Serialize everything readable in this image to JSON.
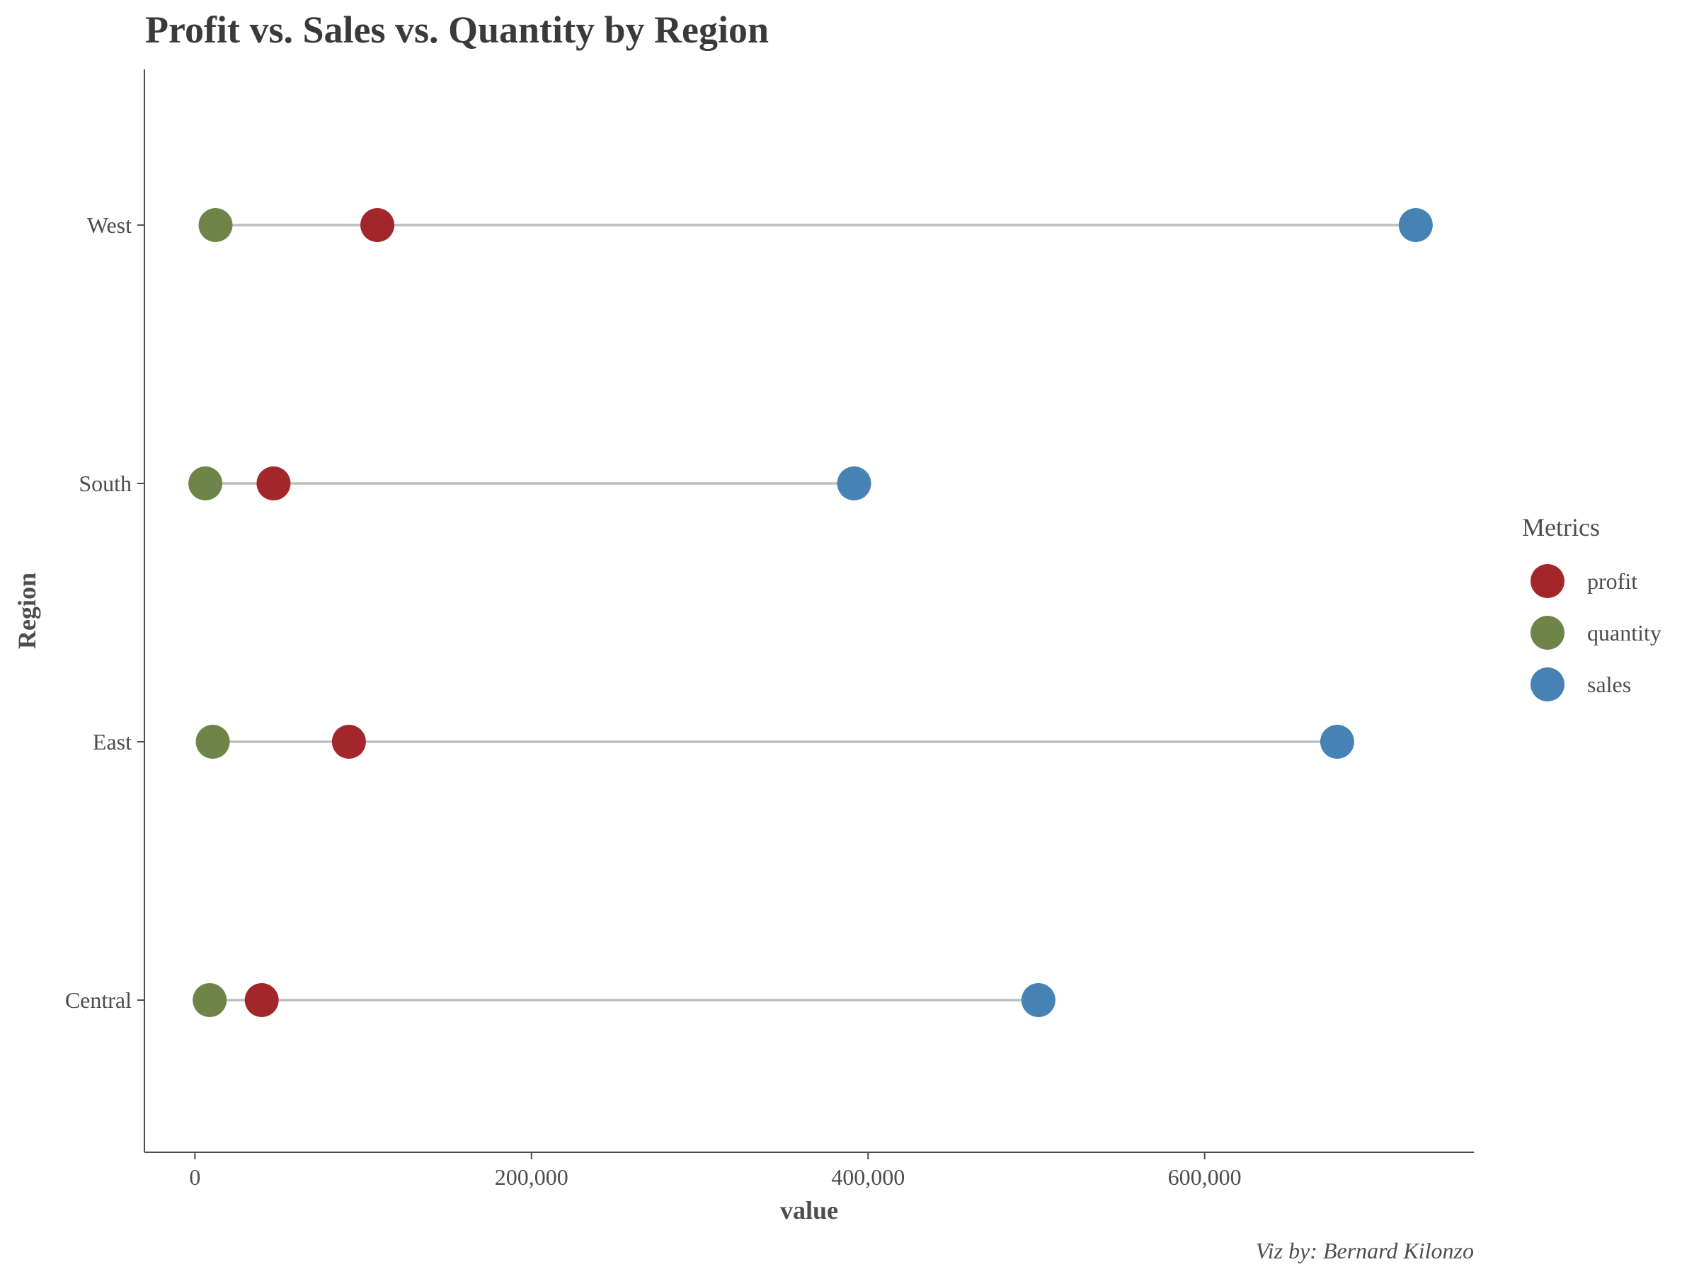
{
  "chart_data": {
    "type": "scatter",
    "subtype": "dumbbell",
    "title": "Profit vs. Sales vs. Quantity by Region",
    "xlabel": "value",
    "ylabel": "Region",
    "caption": "Viz by: Bernard Kilonzo",
    "xlim": [
      -30000,
      760000
    ],
    "x_ticks": [
      0,
      200000,
      400000,
      600000
    ],
    "x_tick_labels": [
      "0",
      "200,000",
      "400,000",
      "600,000"
    ],
    "categories": [
      "Central",
      "East",
      "South",
      "West"
    ],
    "grid": false,
    "legend": {
      "title": "Metrics",
      "position": "right"
    },
    "series": [
      {
        "name": "profit",
        "color": "#a3272a",
        "values": [
          39706,
          91523,
          46749,
          108418
        ]
      },
      {
        "name": "quantity",
        "color": "#6e8449",
        "values": [
          8780,
          10618,
          6209,
          12266
        ]
      },
      {
        "name": "sales",
        "color": "#4682b4",
        "values": [
          501240,
          678781,
          391722,
          725458
        ]
      }
    ],
    "segment_color": "#bdbdbd"
  }
}
